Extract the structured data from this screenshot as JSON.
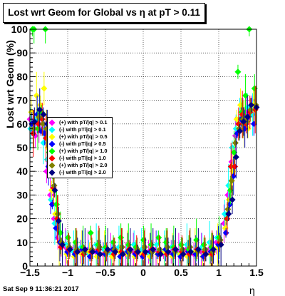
{
  "title": {
    "prefix": "Lost wrt Geom for Global vs ",
    "eta": "η",
    "suffix": " at pT > 0.11"
  },
  "datestamp": "Sat Sep  9 11:36:21 2017",
  "chart_data": {
    "type": "scatter",
    "ylabel": "Lost wrt Geom (%)",
    "xlabel": "η",
    "xlim": [
      -1.5,
      1.5
    ],
    "ylim": [
      0,
      100
    ],
    "x_ticks": [
      "−1.5",
      "−1",
      "−0.5",
      "0",
      "0.5",
      "1",
      "1.5"
    ],
    "y_ticks": [
      "0",
      "10",
      "20",
      "30",
      "40",
      "50",
      "60",
      "70",
      "80",
      "90",
      "100"
    ],
    "grid": true,
    "legend_position": "left",
    "series": [
      {
        "name": "(+) with pT/|q| > 0.1",
        "color": "#ff00ff",
        "points": [
          [
            -1.47,
            62
          ],
          [
            -1.4,
            55
          ],
          [
            -1.35,
            60
          ],
          [
            -1.3,
            58
          ],
          [
            -1.25,
            40
          ],
          [
            -1.2,
            30
          ],
          [
            -1.15,
            20
          ],
          [
            -1.1,
            12
          ],
          [
            -1.0,
            8
          ],
          [
            -0.9,
            7
          ],
          [
            -0.8,
            6
          ],
          [
            -0.7,
            7
          ],
          [
            -0.6,
            6
          ],
          [
            -0.5,
            5
          ],
          [
            -0.4,
            6
          ],
          [
            -0.3,
            7
          ],
          [
            -0.2,
            5
          ],
          [
            -0.1,
            6
          ],
          [
            0.0,
            5
          ],
          [
            0.1,
            6
          ],
          [
            0.2,
            7
          ],
          [
            0.3,
            5
          ],
          [
            0.4,
            6
          ],
          [
            0.5,
            6
          ],
          [
            0.6,
            7
          ],
          [
            0.7,
            5
          ],
          [
            0.8,
            6
          ],
          [
            0.9,
            7
          ],
          [
            1.0,
            10
          ],
          [
            1.1,
            18
          ],
          [
            1.15,
            30
          ],
          [
            1.2,
            44
          ],
          [
            1.25,
            55
          ],
          [
            1.3,
            60
          ],
          [
            1.35,
            66
          ],
          [
            1.4,
            65
          ],
          [
            1.47,
            70
          ]
        ]
      },
      {
        "name": "(-) with pT/|q| > 0.1",
        "color": "#00ffff",
        "points": [
          [
            -1.47,
            58
          ],
          [
            -1.4,
            62
          ],
          [
            -1.35,
            66
          ],
          [
            -1.3,
            52
          ],
          [
            -1.25,
            45
          ],
          [
            -1.2,
            28
          ],
          [
            -1.15,
            18
          ],
          [
            -1.1,
            15
          ],
          [
            -1.0,
            9
          ],
          [
            -0.9,
            6
          ],
          [
            -0.8,
            8
          ],
          [
            -0.7,
            5
          ],
          [
            -0.6,
            9
          ],
          [
            -0.5,
            7
          ],
          [
            -0.4,
            5
          ],
          [
            -0.3,
            8
          ],
          [
            -0.2,
            6
          ],
          [
            -0.1,
            9
          ],
          [
            0.0,
            7
          ],
          [
            0.1,
            5
          ],
          [
            0.2,
            9
          ],
          [
            0.3,
            6
          ],
          [
            0.4,
            8
          ],
          [
            0.5,
            5
          ],
          [
            0.6,
            9
          ],
          [
            0.7,
            6
          ],
          [
            0.8,
            8
          ],
          [
            0.9,
            10
          ],
          [
            1.0,
            12
          ],
          [
            1.1,
            22
          ],
          [
            1.15,
            34
          ],
          [
            1.2,
            50
          ],
          [
            1.25,
            58
          ],
          [
            1.3,
            62
          ],
          [
            1.35,
            64
          ],
          [
            1.4,
            67
          ],
          [
            1.47,
            64
          ]
        ]
      },
      {
        "name": "(+) with pT/|q| > 0.5",
        "color": "#ffff00",
        "points": [
          [
            -1.47,
            65
          ],
          [
            -1.4,
            72
          ],
          [
            -1.35,
            68
          ],
          [
            -1.3,
            75
          ],
          [
            -1.25,
            50
          ],
          [
            -1.2,
            32
          ],
          [
            -1.15,
            22
          ],
          [
            -1.1,
            10
          ],
          [
            -1.0,
            5
          ],
          [
            -0.9,
            4
          ],
          [
            -0.8,
            5
          ],
          [
            -0.7,
            6
          ],
          [
            -0.6,
            4
          ],
          [
            -0.5,
            5
          ],
          [
            -0.4,
            4
          ],
          [
            -0.3,
            6
          ],
          [
            -0.2,
            5
          ],
          [
            -0.1,
            4
          ],
          [
            0.0,
            5
          ],
          [
            0.1,
            4
          ],
          [
            0.2,
            5
          ],
          [
            0.3,
            6
          ],
          [
            0.4,
            4
          ],
          [
            0.5,
            5
          ],
          [
            0.6,
            4
          ],
          [
            0.7,
            6
          ],
          [
            0.8,
            4
          ],
          [
            0.9,
            5
          ],
          [
            1.0,
            8
          ],
          [
            1.1,
            16
          ],
          [
            1.15,
            28
          ],
          [
            1.2,
            40
          ],
          [
            1.25,
            62
          ],
          [
            1.3,
            68
          ],
          [
            1.35,
            60
          ],
          [
            1.4,
            58
          ],
          [
            1.47,
            68
          ]
        ]
      },
      {
        "name": "(-) with pT/|q| > 0.5",
        "color": "#0000ff",
        "points": [
          [
            -1.47,
            60
          ],
          [
            -1.4,
            64
          ],
          [
            -1.35,
            57
          ],
          [
            -1.3,
            56
          ],
          [
            -1.25,
            42
          ],
          [
            -1.2,
            26
          ],
          [
            -1.15,
            16
          ],
          [
            -1.1,
            10
          ],
          [
            -1.0,
            6
          ],
          [
            -0.9,
            5
          ],
          [
            -0.8,
            7
          ],
          [
            -0.7,
            4
          ],
          [
            -0.6,
            6
          ],
          [
            -0.5,
            5
          ],
          [
            -0.4,
            7
          ],
          [
            -0.3,
            4
          ],
          [
            -0.2,
            6
          ],
          [
            -0.1,
            5
          ],
          [
            0.0,
            4
          ],
          [
            0.1,
            6
          ],
          [
            0.2,
            5
          ],
          [
            0.3,
            7
          ],
          [
            0.4,
            5
          ],
          [
            0.5,
            4
          ],
          [
            0.6,
            6
          ],
          [
            0.7,
            5
          ],
          [
            0.8,
            4
          ],
          [
            0.9,
            6
          ],
          [
            1.0,
            9
          ],
          [
            1.1,
            14
          ],
          [
            1.15,
            26
          ],
          [
            1.2,
            38
          ],
          [
            1.25,
            56
          ],
          [
            1.3,
            62
          ],
          [
            1.35,
            58
          ],
          [
            1.4,
            63
          ],
          [
            1.47,
            60
          ]
        ]
      },
      {
        "name": "(+) with pT/|q| > 1.0",
        "color": "#00ff00",
        "points": [
          [
            -1.47,
            100
          ],
          [
            -1.45,
            100
          ],
          [
            -1.4,
            58
          ],
          [
            -1.35,
            65
          ],
          [
            -1.3,
            100
          ],
          [
            -1.25,
            48
          ],
          [
            -1.2,
            38
          ],
          [
            -1.15,
            26
          ],
          [
            -1.1,
            14
          ],
          [
            -1.0,
            12
          ],
          [
            -0.9,
            10
          ],
          [
            -0.8,
            8
          ],
          [
            -0.7,
            14
          ],
          [
            -0.6,
            9
          ],
          [
            -0.5,
            8
          ],
          [
            -0.4,
            10
          ],
          [
            -0.3,
            12
          ],
          [
            -0.2,
            9
          ],
          [
            -0.1,
            8
          ],
          [
            0.0,
            11
          ],
          [
            0.1,
            9
          ],
          [
            0.2,
            12
          ],
          [
            0.3,
            10
          ],
          [
            0.4,
            8
          ],
          [
            0.5,
            9
          ],
          [
            0.6,
            7
          ],
          [
            0.7,
            11
          ],
          [
            0.8,
            9
          ],
          [
            0.9,
            8
          ],
          [
            1.0,
            12
          ],
          [
            1.1,
            20
          ],
          [
            1.15,
            32
          ],
          [
            1.2,
            48
          ],
          [
            1.25,
            82
          ],
          [
            1.3,
            65
          ],
          [
            1.35,
            72
          ],
          [
            1.4,
            100
          ],
          [
            1.47,
            75
          ]
        ]
      },
      {
        "name": "(-) with pT/|q| > 1.0",
        "color": "#ff0000",
        "points": [
          [
            -1.47,
            56
          ],
          [
            -1.4,
            60
          ],
          [
            -1.35,
            62
          ],
          [
            -1.3,
            54
          ],
          [
            -1.25,
            44
          ],
          [
            -1.2,
            33
          ],
          [
            -1.15,
            20
          ],
          [
            -1.1,
            8
          ],
          [
            -1.0,
            7
          ],
          [
            -0.9,
            6
          ],
          [
            -0.8,
            5
          ],
          [
            -0.7,
            6
          ],
          [
            -0.6,
            7
          ],
          [
            -0.5,
            6
          ],
          [
            -0.4,
            5
          ],
          [
            -0.3,
            6
          ],
          [
            -0.2,
            7
          ],
          [
            -0.1,
            6
          ],
          [
            0.0,
            5
          ],
          [
            0.1,
            7
          ],
          [
            0.2,
            6
          ],
          [
            0.3,
            5
          ],
          [
            0.4,
            7
          ],
          [
            0.5,
            6
          ],
          [
            0.6,
            5
          ],
          [
            0.7,
            7
          ],
          [
            0.8,
            6
          ],
          [
            0.9,
            5
          ],
          [
            1.0,
            10
          ],
          [
            1.1,
            20
          ],
          [
            1.15,
            42
          ],
          [
            1.2,
            42
          ],
          [
            1.25,
            60
          ],
          [
            1.3,
            64
          ],
          [
            1.35,
            60
          ],
          [
            1.4,
            65
          ],
          [
            1.47,
            66
          ]
        ]
      },
      {
        "name": "(+) with pT/|q| > 2.0",
        "color": "#808000",
        "points": [
          [
            -1.47,
            58
          ],
          [
            -1.4,
            63
          ],
          [
            -1.35,
            60
          ],
          [
            -1.3,
            58
          ],
          [
            -1.25,
            46
          ],
          [
            -1.2,
            34
          ],
          [
            -1.15,
            22
          ],
          [
            -1.1,
            10
          ],
          [
            -1.0,
            8
          ],
          [
            -0.9,
            7
          ],
          [
            -0.8,
            6
          ],
          [
            -0.7,
            7
          ],
          [
            -0.6,
            8
          ],
          [
            -0.5,
            6
          ],
          [
            -0.4,
            7
          ],
          [
            -0.3,
            8
          ],
          [
            -0.2,
            6
          ],
          [
            -0.1,
            7
          ],
          [
            0.0,
            8
          ],
          [
            0.1,
            6
          ],
          [
            0.2,
            7
          ],
          [
            0.3,
            8
          ],
          [
            0.4,
            6
          ],
          [
            0.5,
            7
          ],
          [
            0.6,
            8
          ],
          [
            0.7,
            6
          ],
          [
            0.8,
            7
          ],
          [
            0.9,
            6
          ],
          [
            1.0,
            11
          ],
          [
            1.1,
            24
          ],
          [
            1.15,
            36
          ],
          [
            1.2,
            52
          ],
          [
            1.25,
            58
          ],
          [
            1.3,
            62
          ],
          [
            1.35,
            61
          ],
          [
            1.4,
            66
          ],
          [
            1.47,
            68
          ]
        ]
      },
      {
        "name": "(-) with pT/|q| > 2.0",
        "color": "#000080",
        "points": [
          [
            -1.47,
            61
          ],
          [
            -1.4,
            66
          ],
          [
            -1.35,
            64
          ],
          [
            -1.3,
            60
          ],
          [
            -1.25,
            48
          ],
          [
            -1.2,
            32
          ],
          [
            -1.15,
            19
          ],
          [
            -1.1,
            9
          ],
          [
            -1.0,
            7
          ],
          [
            -0.9,
            6
          ],
          [
            -0.8,
            7
          ],
          [
            -0.7,
            6
          ],
          [
            -0.6,
            5
          ],
          [
            -0.5,
            7
          ],
          [
            -0.4,
            6
          ],
          [
            -0.3,
            5
          ],
          [
            -0.2,
            7
          ],
          [
            -0.1,
            6
          ],
          [
            0.0,
            6
          ],
          [
            0.1,
            7
          ],
          [
            0.2,
            5
          ],
          [
            0.3,
            6
          ],
          [
            0.4,
            7
          ],
          [
            0.5,
            5
          ],
          [
            0.6,
            6
          ],
          [
            0.7,
            7
          ],
          [
            0.8,
            5
          ],
          [
            0.9,
            7
          ],
          [
            1.0,
            9
          ],
          [
            1.1,
            22
          ],
          [
            1.15,
            28
          ],
          [
            1.2,
            46
          ],
          [
            1.25,
            57
          ],
          [
            1.3,
            61
          ],
          [
            1.35,
            63
          ],
          [
            1.4,
            68
          ],
          [
            1.47,
            67
          ]
        ]
      }
    ]
  }
}
